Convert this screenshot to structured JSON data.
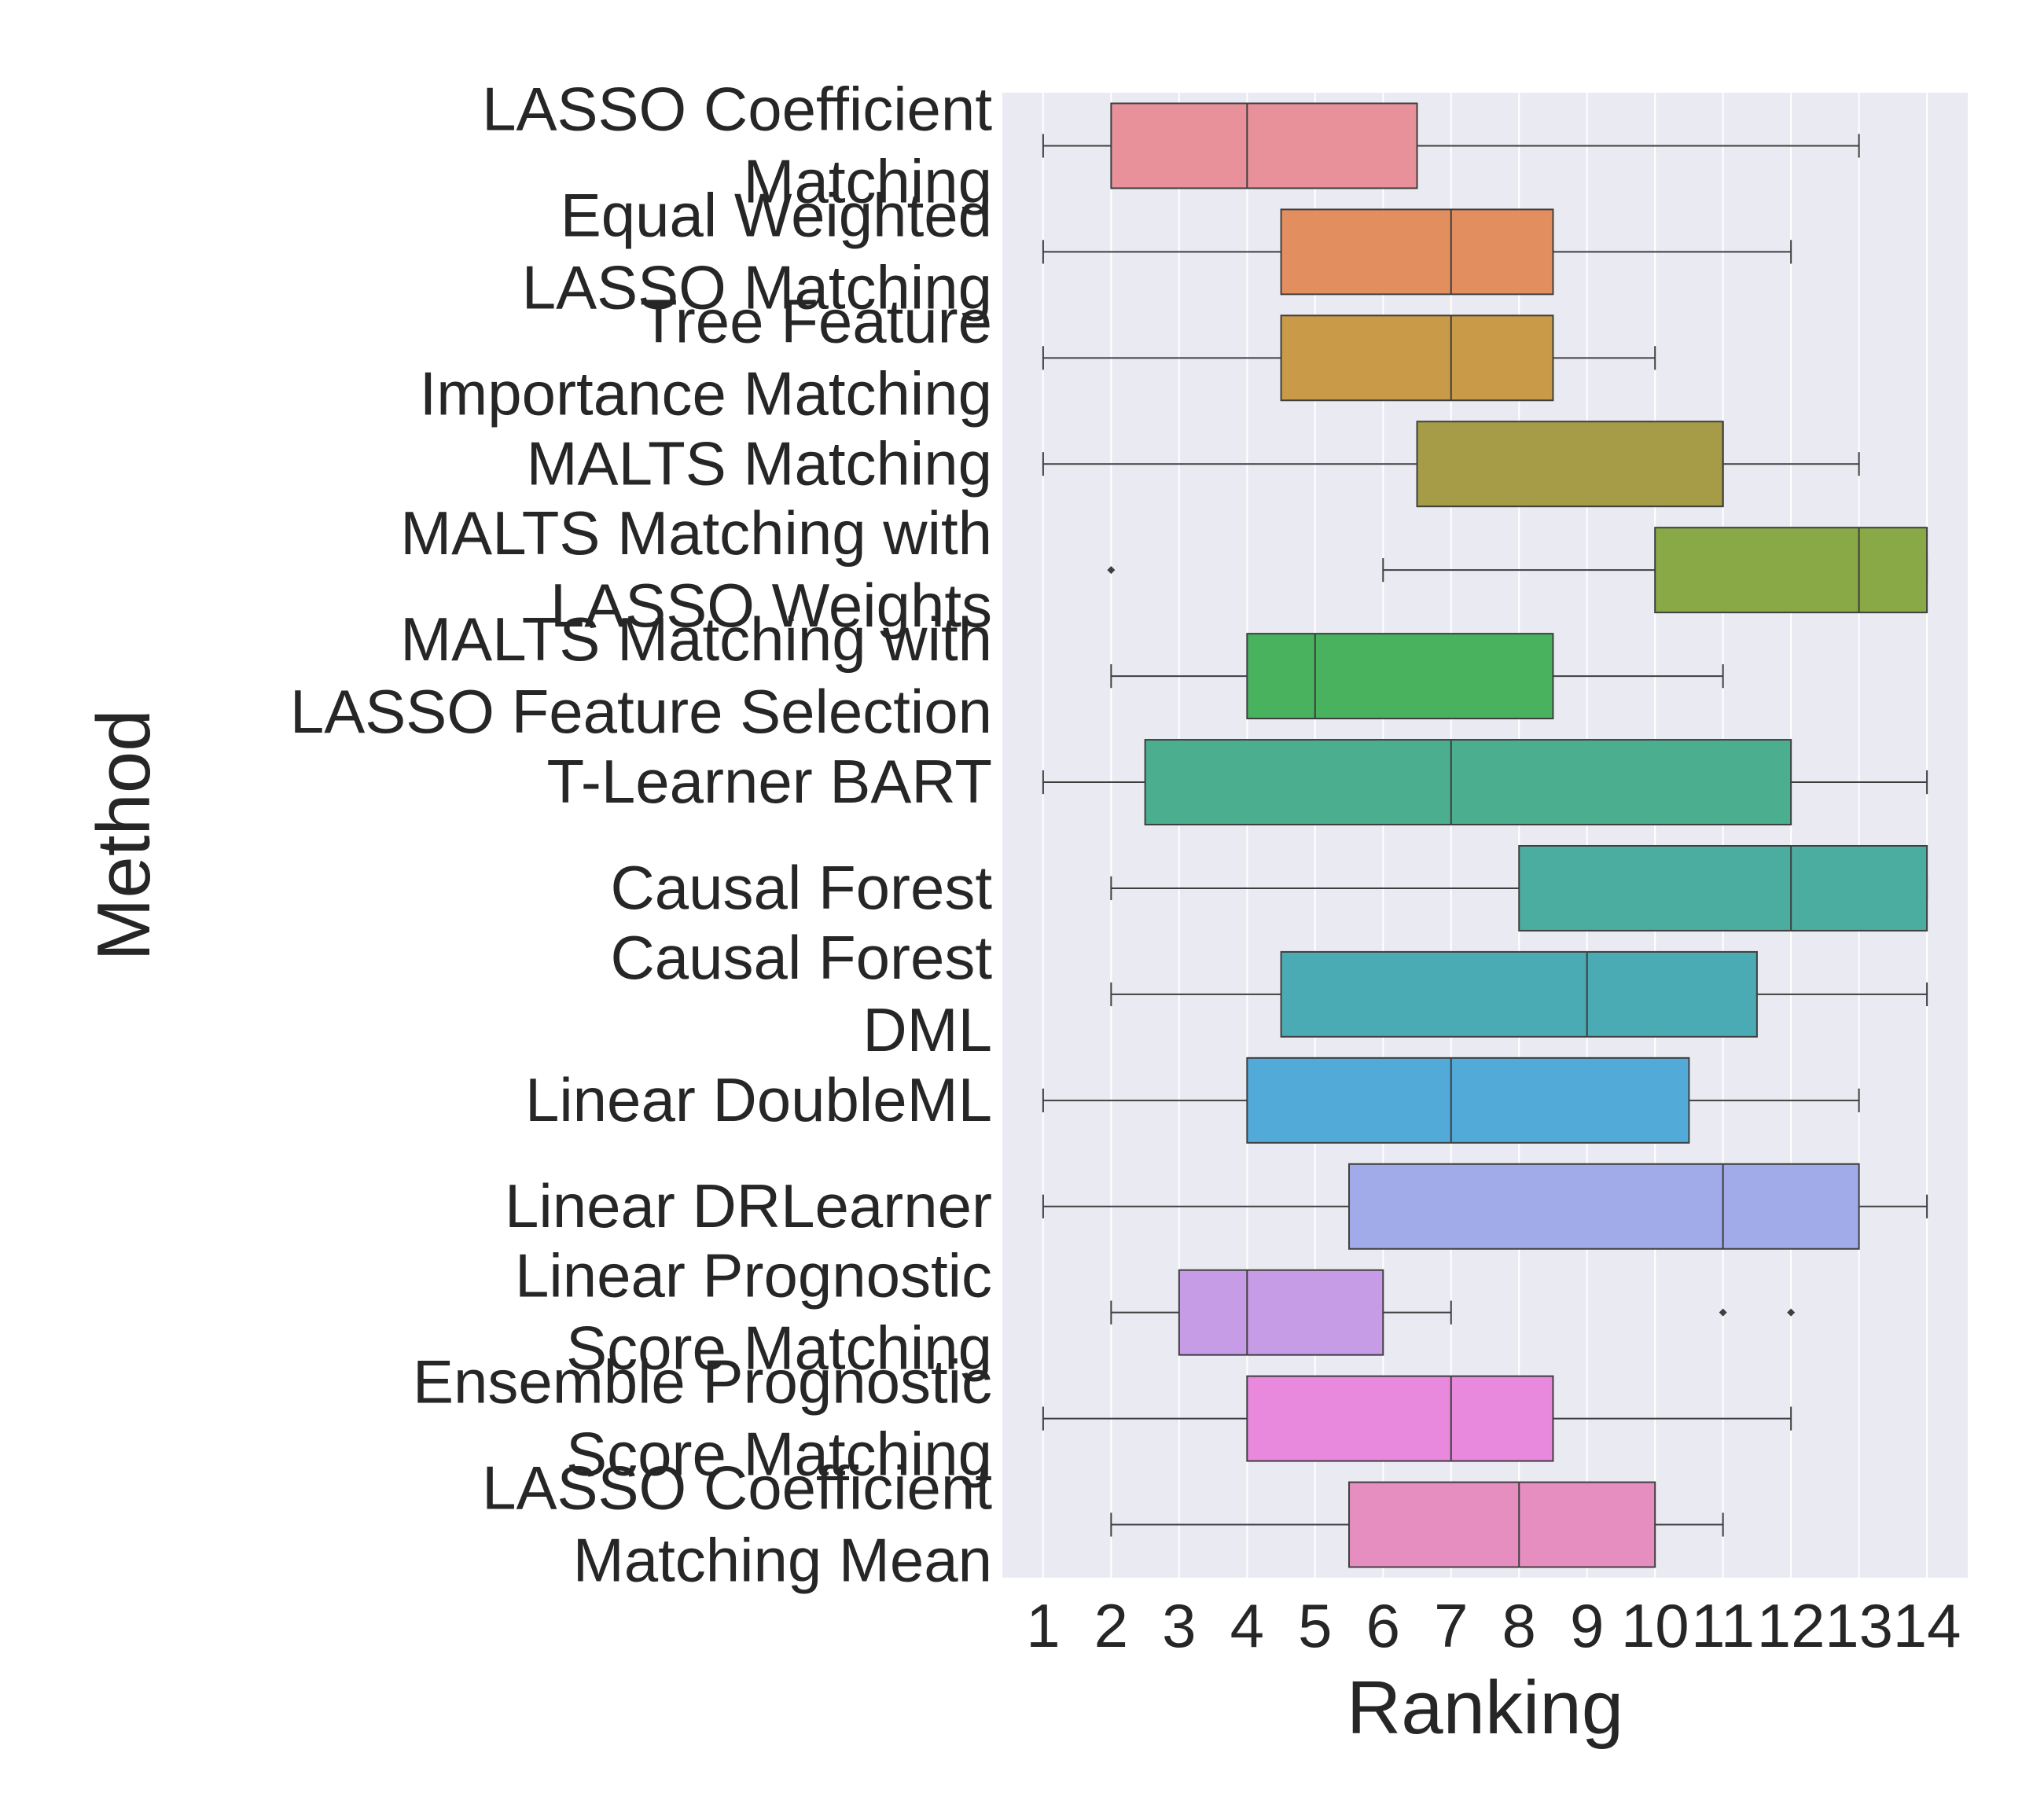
{
  "chart_data": {
    "type": "boxplot",
    "orientation": "horizontal",
    "title": "",
    "xlabel": "Ranking",
    "ylabel": "Method",
    "xlim": [
      0.4,
      14.6
    ],
    "xticks": [
      1,
      2,
      3,
      4,
      5,
      6,
      7,
      8,
      9,
      10,
      11,
      12,
      13,
      14
    ],
    "grid": true,
    "background": "#eaeaf2",
    "categories": [
      {
        "label": [
          "LASSO Coefficient",
          "Matching"
        ],
        "color": "#e8919b",
        "whisker_low": 1,
        "q1": 2,
        "median": 4,
        "q3": 6.5,
        "whisker_high": 13,
        "outliers": []
      },
      {
        "label": [
          "Equal Weighted",
          "LASSO Matching"
        ],
        "color": "#e38e5f",
        "whisker_low": 1,
        "q1": 4.5,
        "median": 7,
        "q3": 8.5,
        "whisker_high": 12,
        "outliers": []
      },
      {
        "label": [
          "Tree Feature",
          "Importance Matching"
        ],
        "color": "#c99a48",
        "whisker_low": 1,
        "q1": 4.5,
        "median": 7,
        "q3": 8.5,
        "whisker_high": 10,
        "outliers": []
      },
      {
        "label": [
          "MALTS Matching"
        ],
        "color": "#a69b46",
        "whisker_low": 1,
        "q1": 6.5,
        "median": 11,
        "q3": 11,
        "whisker_high": 13,
        "outliers": []
      },
      {
        "label": [
          "MALTS Matching with",
          "LASSO Weights"
        ],
        "color": "#89a846",
        "whisker_low": 6,
        "q1": 10,
        "median": 13,
        "q3": 14,
        "whisker_high": 14,
        "outliers": [
          2
        ]
      },
      {
        "label": [
          "MALTS Matching with",
          "LASSO Feature Selection"
        ],
        "color": "#48b25f",
        "whisker_low": 2,
        "q1": 4,
        "median": 5,
        "q3": 8.5,
        "whisker_high": 11,
        "outliers": []
      },
      {
        "label": [
          "T-Learner BART"
        ],
        "color": "#4bae8f",
        "whisker_low": 1,
        "q1": 2.5,
        "median": 7,
        "q3": 12,
        "whisker_high": 14,
        "outliers": []
      },
      {
        "label": [
          "Causal Forest"
        ],
        "color": "#4aad9f",
        "whisker_low": 2,
        "q1": 8,
        "median": 12,
        "q3": 14,
        "whisker_high": 14,
        "outliers": []
      },
      {
        "label": [
          "Causal Forest",
          "DML"
        ],
        "color": "#4aabb4",
        "whisker_low": 2,
        "q1": 4.5,
        "median": 9,
        "q3": 11.5,
        "whisker_high": 14,
        "outliers": []
      },
      {
        "label": [
          "Linear DoubleML"
        ],
        "color": "#52aad9",
        "whisker_low": 1,
        "q1": 4,
        "median": 7,
        "q3": 10.5,
        "whisker_high": 13,
        "outliers": []
      },
      {
        "label": [
          "Linear DRLearner"
        ],
        "color": "#a1abe9",
        "whisker_low": 1,
        "q1": 5.5,
        "median": 11,
        "q3": 13,
        "whisker_high": 14,
        "outliers": []
      },
      {
        "label": [
          "Linear Prognostic",
          "Score Matching"
        ],
        "color": "#c79ce6",
        "whisker_low": 2,
        "q1": 3,
        "median": 4,
        "q3": 6,
        "whisker_high": 7,
        "outliers": [
          11,
          12
        ]
      },
      {
        "label": [
          "Ensemble Prognostic",
          "Score Matching"
        ],
        "color": "#e889de",
        "whisker_low": 1,
        "q1": 4,
        "median": 7,
        "q3": 8.5,
        "whisker_high": 12,
        "outliers": []
      },
      {
        "label": [
          "LASSO Coefficient",
          "Matching Mean"
        ],
        "color": "#e68ebf",
        "whisker_low": 2,
        "q1": 5.5,
        "median": 8,
        "q3": 10,
        "whisker_high": 11,
        "outliers": []
      }
    ]
  }
}
